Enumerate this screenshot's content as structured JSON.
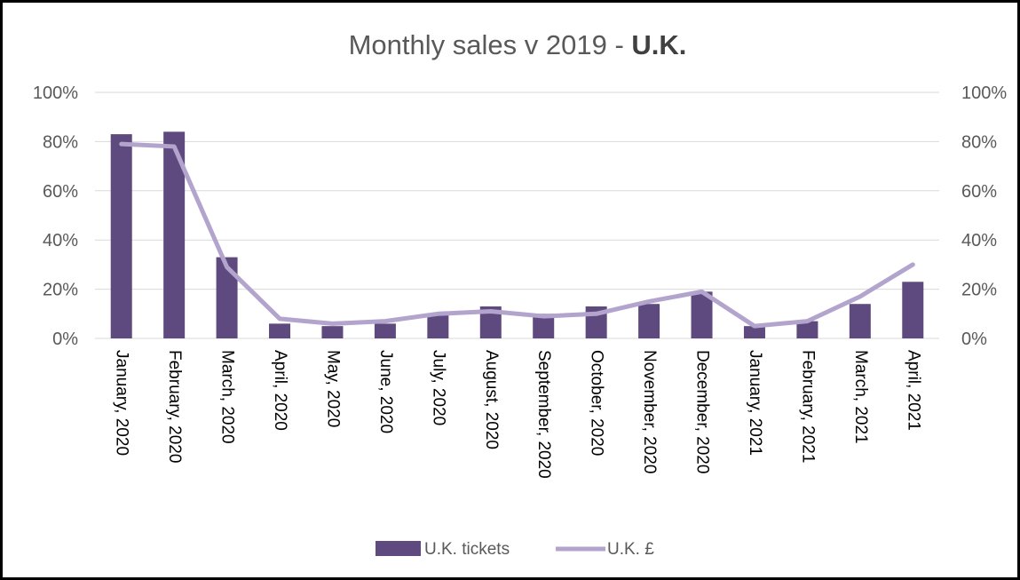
{
  "chart_data": {
    "type": "bar",
    "title": "Monthly sales v 2019 - ",
    "title_bold": "U.K.",
    "categories": [
      "January, 2020",
      "February, 2020",
      "March, 2020",
      "April, 2020",
      "May, 2020",
      "June, 2020",
      "July, 2020",
      "August, 2020",
      "September, 2020",
      "October, 2020",
      "November, 2020",
      "December, 2020",
      "January, 2021",
      "February, 2021",
      "March, 2021",
      "April, 2021"
    ],
    "series": [
      {
        "name": "U.K. tickets",
        "type": "bar",
        "color": "#5e4a7e",
        "values": [
          83,
          84,
          33,
          6,
          5,
          6,
          10,
          13,
          10,
          13,
          14,
          19,
          5,
          7,
          14,
          23
        ]
      },
      {
        "name": "U.K. £",
        "type": "line",
        "color": "#b2a4cc",
        "values": [
          79,
          78,
          29,
          8,
          6,
          7,
          10,
          11,
          9,
          10,
          15,
          19,
          5,
          7,
          17,
          30
        ]
      }
    ],
    "y_left": {
      "min": 0,
      "max": 100,
      "ticks": [
        "0%",
        "20%",
        "40%",
        "60%",
        "80%",
        "100%"
      ]
    },
    "y_right": {
      "min": 0,
      "max": 100,
      "ticks": [
        "0%",
        "20%",
        "40%",
        "60%",
        "80%",
        "100%"
      ]
    },
    "grid": true,
    "legend_position": "bottom",
    "gridline_color": "#d9d9d9"
  }
}
